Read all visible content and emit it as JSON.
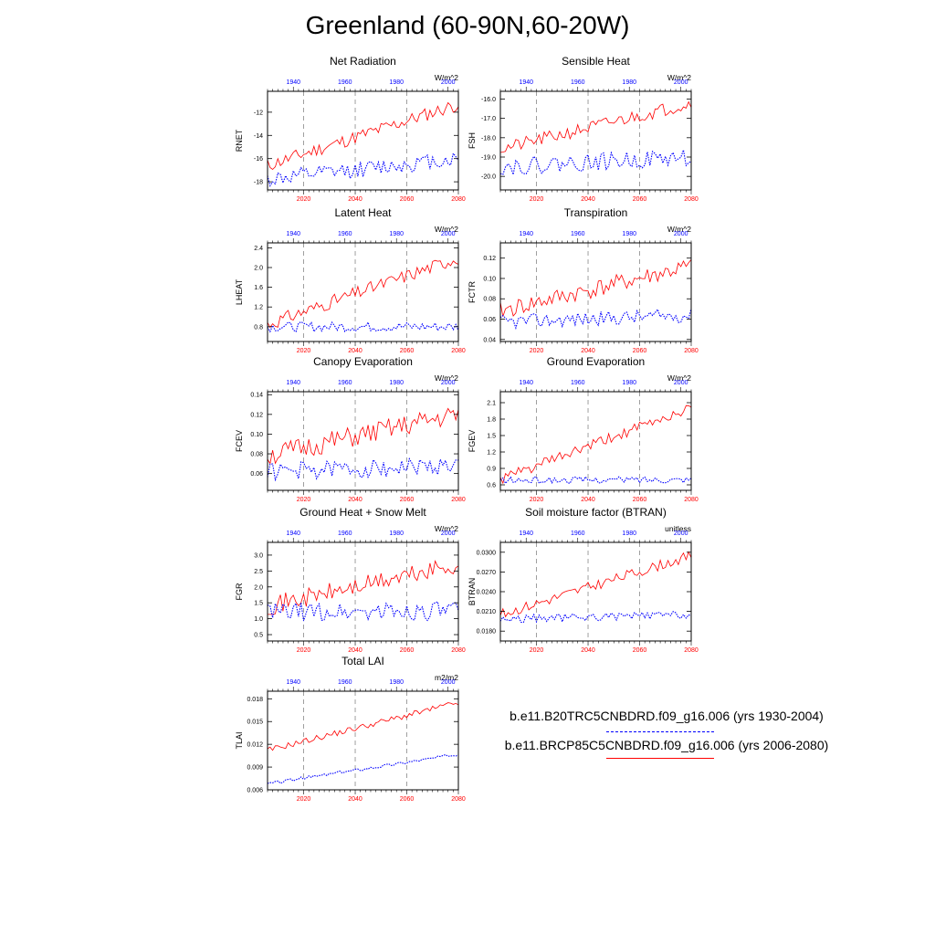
{
  "title": "Greenland (60-90N,60-20W)",
  "colors": {
    "historical": "#0000ff",
    "future": "#ff0000",
    "axis": "#000000",
    "grid": "#888888"
  },
  "legend": {
    "historical": "b.e11.B20TRC5CNBDRD.f09_g16.006 (yrs 1930-2004)",
    "future": "b.e11.BRCP85C5CNBDRD.f09_g16.006 (yrs 2006-2080)"
  },
  "chart_data": [
    {
      "type": "line",
      "title": "Net Radiation",
      "ylabel": "RNET",
      "units": "W/m^2",
      "ylim": [
        -18.7,
        -10.2
      ],
      "yticks": [
        -18,
        -16,
        -14,
        -12
      ],
      "ytick_labels": [
        "-18",
        "-16",
        "-14",
        "-12"
      ],
      "x_top": {
        "label_color": "blue",
        "ticks": [
          1940,
          1960,
          1980,
          2000
        ],
        "range": [
          1930,
          2004
        ]
      },
      "x_bottom": {
        "label_color": "red",
        "ticks": [
          2020,
          2040,
          2060,
          2080
        ],
        "range": [
          2006,
          2080
        ]
      },
      "series": [
        {
          "color": "red",
          "start": [
            2006,
            -16.6
          ],
          "end": [
            2080,
            -11.3
          ],
          "noise": 0.6,
          "seed": 11
        },
        {
          "color": "blue",
          "style": "dotted",
          "start": [
            1930,
            -17.8
          ],
          "end": [
            2004,
            -16.0
          ],
          "noise": 0.7,
          "seed": 12
        }
      ]
    },
    {
      "type": "line",
      "title": "Sensible Heat",
      "ylabel": "FSH",
      "units": "W/m^2",
      "ylim": [
        -20.7,
        -15.6
      ],
      "yticks": [
        -20,
        -19,
        -18,
        -17,
        -16
      ],
      "ytick_labels": [
        "-20.0",
        "-19.0",
        "-18.0",
        "-17.0",
        "-16.0"
      ],
      "x_top": {
        "label_color": "blue",
        "ticks": [
          1940,
          1960,
          1980,
          2000
        ],
        "range": [
          1930,
          2004
        ]
      },
      "x_bottom": {
        "label_color": "red",
        "ticks": [
          2020,
          2040,
          2060,
          2080
        ],
        "range": [
          2006,
          2080
        ]
      },
      "series": [
        {
          "color": "red",
          "start": [
            2006,
            -18.6
          ],
          "end": [
            2080,
            -16.2
          ],
          "noise": 0.35,
          "seed": 21
        },
        {
          "color": "blue",
          "style": "dotted",
          "start": [
            1930,
            -19.5
          ],
          "end": [
            2004,
            -19.0
          ],
          "noise": 0.45,
          "seed": 22
        }
      ]
    },
    {
      "type": "line",
      "title": "Latent Heat",
      "ylabel": "LHEAT",
      "units": "W/m^2",
      "ylim": [
        0.5,
        2.5
      ],
      "yticks": [
        0.8,
        1.2,
        1.6,
        2.0,
        2.4
      ],
      "ytick_labels": [
        "0.8",
        "1.2",
        "1.6",
        "2.0",
        "2.4"
      ],
      "x_top": {
        "label_color": "blue",
        "ticks": [
          1940,
          1960,
          1980,
          2000
        ],
        "range": [
          1930,
          2004
        ]
      },
      "x_bottom": {
        "label_color": "red",
        "ticks": [
          2020,
          2040,
          2060,
          2080
        ],
        "range": [
          2006,
          2080
        ]
      },
      "series": [
        {
          "color": "red",
          "start": [
            2006,
            0.85
          ],
          "end": [
            2080,
            2.2
          ],
          "noise": 0.14,
          "seed": 31
        },
        {
          "color": "blue",
          "style": "dotted",
          "start": [
            1930,
            0.8
          ],
          "end": [
            2004,
            0.8
          ],
          "noise": 0.1,
          "seed": 32
        }
      ]
    },
    {
      "type": "line",
      "title": "Transpiration",
      "ylabel": "FCTR",
      "units": "W/m^2",
      "ylim": [
        0.038,
        0.135
      ],
      "yticks": [
        0.04,
        0.06,
        0.08,
        0.1,
        0.12
      ],
      "ytick_labels": [
        "0.04",
        "0.06",
        "0.08",
        "0.10",
        "0.12"
      ],
      "x_top": {
        "label_color": "blue",
        "ticks": [
          1940,
          1960,
          1980,
          2000
        ],
        "range": [
          1930,
          2004
        ]
      },
      "x_bottom": {
        "label_color": "red",
        "ticks": [
          2020,
          2040,
          2060,
          2080
        ],
        "range": [
          2006,
          2080
        ]
      },
      "series": [
        {
          "color": "red",
          "start": [
            2006,
            0.068
          ],
          "end": [
            2080,
            0.112
          ],
          "noise": 0.009,
          "seed": 41
        },
        {
          "color": "blue",
          "style": "dotted",
          "start": [
            1930,
            0.057
          ],
          "end": [
            2004,
            0.064
          ],
          "noise": 0.007,
          "seed": 42
        }
      ]
    },
    {
      "type": "line",
      "title": "Canopy Evaporation",
      "ylabel": "FCEV",
      "units": "W/m^2",
      "ylim": [
        0.043,
        0.143
      ],
      "yticks": [
        0.06,
        0.08,
        0.1,
        0.12,
        0.14
      ],
      "ytick_labels": [
        "0.06",
        "0.08",
        "0.10",
        "0.12",
        "0.14"
      ],
      "x_top": {
        "label_color": "blue",
        "ticks": [
          1940,
          1960,
          1980,
          2000
        ],
        "range": [
          1930,
          2004
        ]
      },
      "x_bottom": {
        "label_color": "red",
        "ticks": [
          2020,
          2040,
          2060,
          2080
        ],
        "range": [
          2006,
          2080
        ]
      },
      "series": [
        {
          "color": "red",
          "start": [
            2006,
            0.078
          ],
          "end": [
            2080,
            0.12
          ],
          "noise": 0.011,
          "seed": 51
        },
        {
          "color": "blue",
          "style": "dotted",
          "start": [
            1930,
            0.062
          ],
          "end": [
            2004,
            0.068
          ],
          "noise": 0.009,
          "seed": 52
        }
      ]
    },
    {
      "type": "line",
      "title": "Ground Evaporation",
      "ylabel": "FGEV",
      "units": "W/m^2",
      "ylim": [
        0.5,
        2.3
      ],
      "yticks": [
        0.6,
        0.9,
        1.2,
        1.5,
        1.8,
        2.1
      ],
      "ytick_labels": [
        "0.6",
        "0.9",
        "1.2",
        "1.5",
        "1.8",
        "2.1"
      ],
      "x_top": {
        "label_color": "blue",
        "ticks": [
          1940,
          1960,
          1980,
          2000
        ],
        "range": [
          1930,
          2004
        ]
      },
      "x_bottom": {
        "label_color": "red",
        "ticks": [
          2020,
          2040,
          2060,
          2080
        ],
        "range": [
          2006,
          2080
        ]
      },
      "series": [
        {
          "color": "red",
          "start": [
            2006,
            0.7
          ],
          "end": [
            2080,
            2.0
          ],
          "noise": 0.1,
          "seed": 61
        },
        {
          "color": "blue",
          "style": "dotted",
          "start": [
            1930,
            0.68
          ],
          "end": [
            2004,
            0.7
          ],
          "noise": 0.06,
          "seed": 62
        }
      ]
    },
    {
      "type": "line",
      "title": "Ground Heat + Snow Melt",
      "ylabel": "FGR",
      "units": "W/m^2",
      "ylim": [
        0.3,
        3.4
      ],
      "yticks": [
        0.5,
        1.0,
        1.5,
        2.0,
        2.5,
        3.0
      ],
      "ytick_labels": [
        "0.5",
        "1.0",
        "1.5",
        "2.0",
        "2.5",
        "3.0"
      ],
      "x_top": {
        "label_color": "blue",
        "ticks": [
          1940,
          1960,
          1980,
          2000
        ],
        "range": [
          1930,
          2004
        ]
      },
      "x_bottom": {
        "label_color": "red",
        "ticks": [
          2020,
          2040,
          2060,
          2080
        ],
        "range": [
          2006,
          2080
        ]
      },
      "series": [
        {
          "color": "red",
          "start": [
            2006,
            1.4
          ],
          "end": [
            2080,
            2.7
          ],
          "noise": 0.3,
          "seed": 71
        },
        {
          "color": "blue",
          "style": "dotted",
          "start": [
            1930,
            1.2
          ],
          "end": [
            2004,
            1.25
          ],
          "noise": 0.3,
          "seed": 72
        }
      ]
    },
    {
      "type": "line",
      "title": "Soil moisture factor (BTRAN)",
      "ylabel": "BTRAN",
      "units": "unitless",
      "ylim": [
        0.0165,
        0.0315
      ],
      "yticks": [
        0.018,
        0.021,
        0.024,
        0.027,
        0.03
      ],
      "ytick_labels": [
        "0.0180",
        "0.0210",
        "0.0240",
        "0.0270",
        "0.0300"
      ],
      "x_top": {
        "label_color": "blue",
        "ticks": [
          1940,
          1960,
          1980,
          2000
        ],
        "range": [
          1930,
          2004
        ]
      },
      "x_bottom": {
        "label_color": "red",
        "ticks": [
          2020,
          2040,
          2060,
          2080
        ],
        "range": [
          2006,
          2080
        ]
      },
      "series": [
        {
          "color": "red",
          "start": [
            2006,
            0.0205
          ],
          "end": [
            2080,
            0.0295
          ],
          "noise": 0.0008,
          "seed": 81
        },
        {
          "color": "blue",
          "style": "dotted",
          "start": [
            1930,
            0.0198
          ],
          "end": [
            2004,
            0.0205
          ],
          "noise": 0.0006,
          "seed": 82
        }
      ]
    },
    {
      "type": "line",
      "title": "Total LAI",
      "ylabel": "TLAI",
      "units": "m2/m2",
      "ylim": [
        0.006,
        0.019
      ],
      "yticks": [
        0.006,
        0.009,
        0.012,
        0.015,
        0.018
      ],
      "ytick_labels": [
        "0.006",
        "0.009",
        "0.012",
        "0.015",
        "0.018"
      ],
      "x_top": {
        "label_color": "blue",
        "ticks": [
          1940,
          1960,
          1980,
          2000
        ],
        "range": [
          1930,
          2004
        ]
      },
      "x_bottom": {
        "label_color": "red",
        "ticks": [
          2020,
          2040,
          2060,
          2080
        ],
        "range": [
          2006,
          2080
        ]
      },
      "series": [
        {
          "color": "red",
          "start": [
            2006,
            0.0112
          ],
          "end": [
            2080,
            0.0175
          ],
          "noise": 0.0004,
          "seed": 91
        },
        {
          "color": "blue",
          "style": "dotted",
          "start": [
            1930,
            0.0068
          ],
          "end": [
            2004,
            0.0107
          ],
          "noise": 0.0002,
          "seed": 92
        }
      ]
    }
  ]
}
